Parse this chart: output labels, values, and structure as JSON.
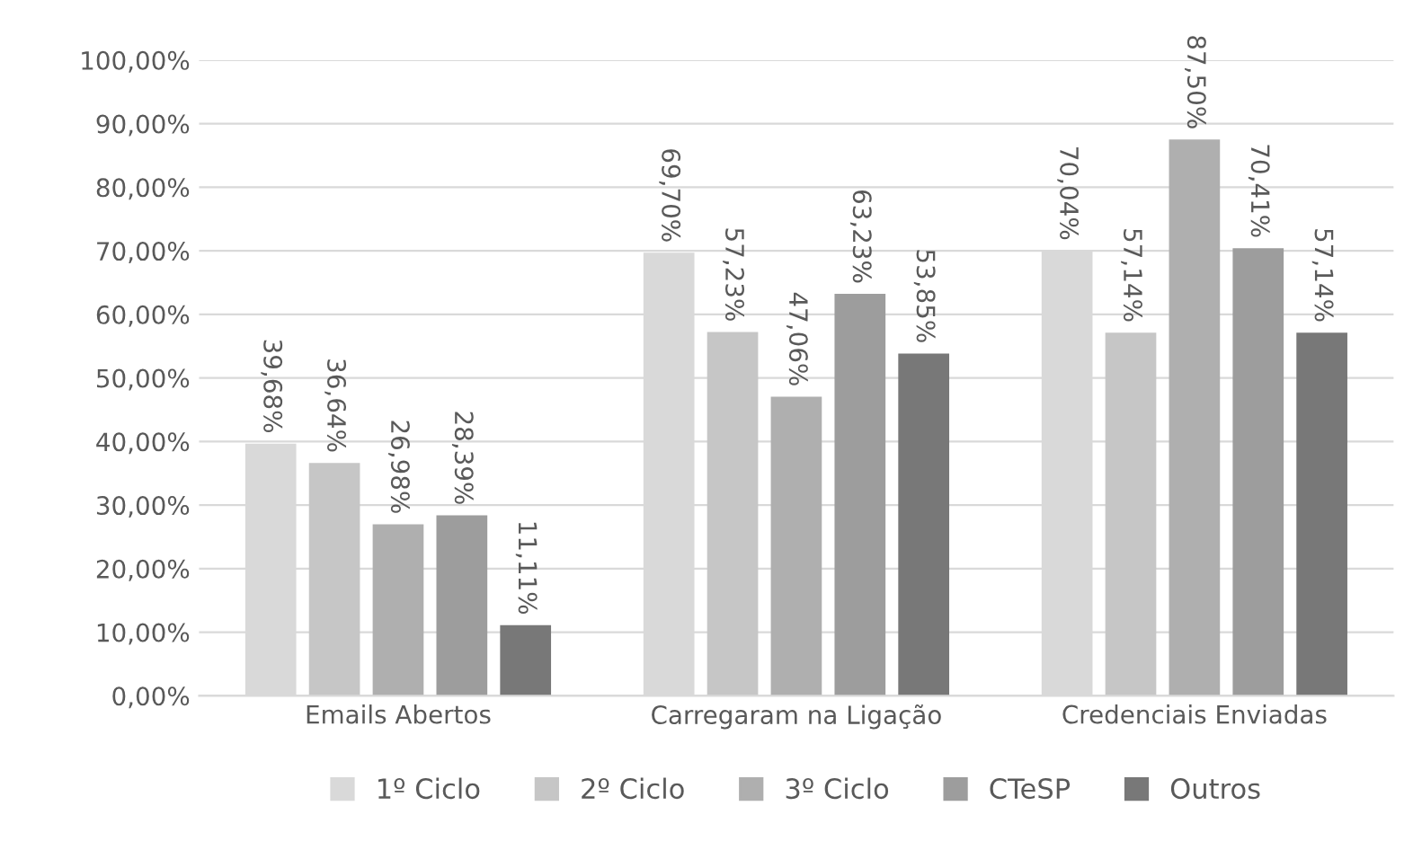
{
  "chart_data": {
    "type": "bar",
    "categories": [
      "Emails Abertos",
      "Carregaram na Ligação",
      "Credenciais Enviadas"
    ],
    "series": [
      {
        "name": "1º Ciclo",
        "color": "#d9d9d9",
        "values": [
          39.68,
          69.7,
          70.04
        ],
        "value_labels": [
          "39,68%",
          "69,70%",
          "70,04%"
        ]
      },
      {
        "name": "2º Ciclo",
        "color": "#c6c6c6",
        "values": [
          36.64,
          57.23,
          57.14
        ],
        "value_labels": [
          "36,64%",
          "57,23%",
          "57,14%"
        ]
      },
      {
        "name": "3º Ciclo",
        "color": "#afafaf",
        "values": [
          26.98,
          47.06,
          87.5
        ],
        "value_labels": [
          "26,98%",
          "47,06%",
          "87,50%"
        ]
      },
      {
        "name": "CTeSP",
        "color": "#9d9d9d",
        "values": [
          28.39,
          63.23,
          70.41
        ],
        "value_labels": [
          "28,39%",
          "63,23%",
          "70,41%"
        ]
      },
      {
        "name": "Outros",
        "color": "#787878",
        "values": [
          11.11,
          53.85,
          57.14
        ],
        "value_labels": [
          "11,11%",
          "53,85%",
          "57,14%"
        ]
      }
    ],
    "ylim": [
      0,
      100
    ],
    "yticks": [
      {
        "value": 0,
        "label": "0,00%"
      },
      {
        "value": 10,
        "label": "10,00%"
      },
      {
        "value": 20,
        "label": "20,00%"
      },
      {
        "value": 30,
        "label": "30,00%"
      },
      {
        "value": 40,
        "label": "40,00%"
      },
      {
        "value": 50,
        "label": "50,00%"
      },
      {
        "value": 60,
        "label": "60,00%"
      },
      {
        "value": 70,
        "label": "70,00%"
      },
      {
        "value": 80,
        "label": "80,00%"
      },
      {
        "value": 90,
        "label": "90,00%"
      },
      {
        "value": 100,
        "label": "100,00%"
      }
    ],
    "grid": "y",
    "legend": "bottom"
  }
}
